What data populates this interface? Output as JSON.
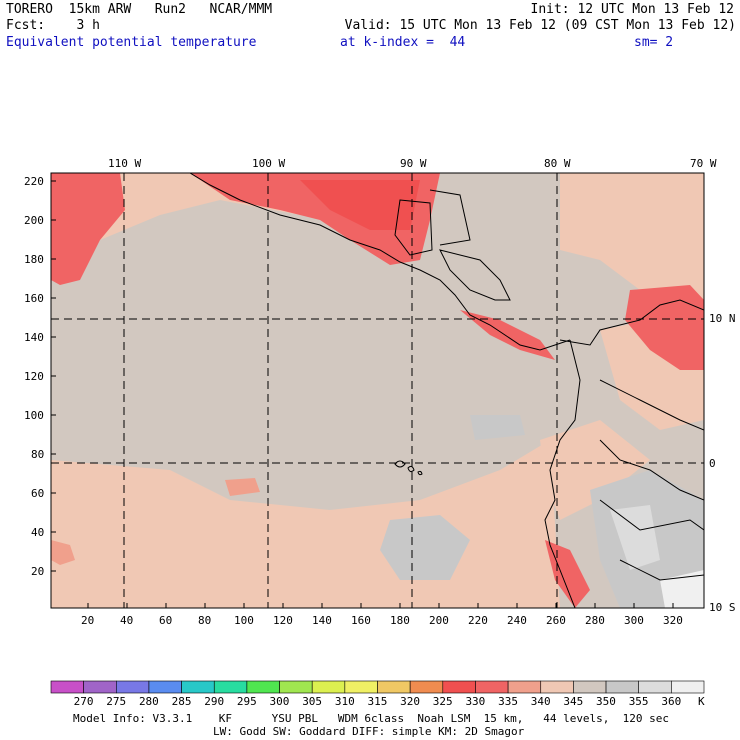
{
  "header": {
    "line1_left": "TORERO  15km ARW   Run2   NCAR/MMM",
    "line1_right": "Init: 12 UTC Mon 13 Feb 12",
    "line2_left": "Fcst:    3 h",
    "line2_right": "Valid: 15 UTC Mon 13 Feb 12 (09 CST Mon 13 Feb 12)",
    "line3_field": "Equivalent potential temperature",
    "line3_level": "at k-index =  44",
    "line3_smooth": "sm= 2"
  },
  "map": {
    "top_lon_labels": [
      "110 W",
      "100 W",
      "90 W",
      "80 W",
      "70 W"
    ],
    "right_lat_labels": [
      "10 N",
      "0",
      "10 S"
    ],
    "y_ticks": [
      "220",
      "200",
      "180",
      "160",
      "140",
      "120",
      "100",
      "80",
      "60",
      "40",
      "20"
    ],
    "x_ticks": [
      "20",
      "40",
      "60",
      "80",
      "100",
      "120",
      "140",
      "160",
      "180",
      "200",
      "220",
      "240",
      "260",
      "280",
      "300",
      "320"
    ]
  },
  "colorbar": {
    "unit": "K",
    "labels": [
      "270",
      "275",
      "280",
      "285",
      "290",
      "295",
      "300",
      "305",
      "310",
      "315",
      "320",
      "325",
      "330",
      "335",
      "340",
      "345",
      "350",
      "355",
      "360"
    ],
    "colors": [
      "#c850c8",
      "#a064c8",
      "#7878e6",
      "#5a8cf0",
      "#28c8c8",
      "#28dca0",
      "#50e650",
      "#a0e650",
      "#dcf050",
      "#f0f064",
      "#f0c864",
      "#f08c50",
      "#f05050",
      "#f06464",
      "#f0a08c",
      "#f0c8b4",
      "#d2c8c0",
      "#c8c8c8",
      "#dcdcdc",
      "#f0f0f0"
    ]
  },
  "footer": {
    "line1": "Model Info: V3.3.1    KF      YSU PBL   WDM 6class  Noah LSM  15 km,   44 levels,  120 sec",
    "line2": "LW: Godd SW: Goddard DIFF: simple KM: 2D Smagor"
  },
  "field_colors": {
    "background": "#d2c8c0",
    "warm": "#f0c8b4",
    "warmer": "#f0a08c",
    "hot": "#f06464",
    "hottest": "#f05050",
    "cool": "#c8c8c8",
    "cooler": "#dcdcdc",
    "coldest": "#f0f0f0"
  }
}
